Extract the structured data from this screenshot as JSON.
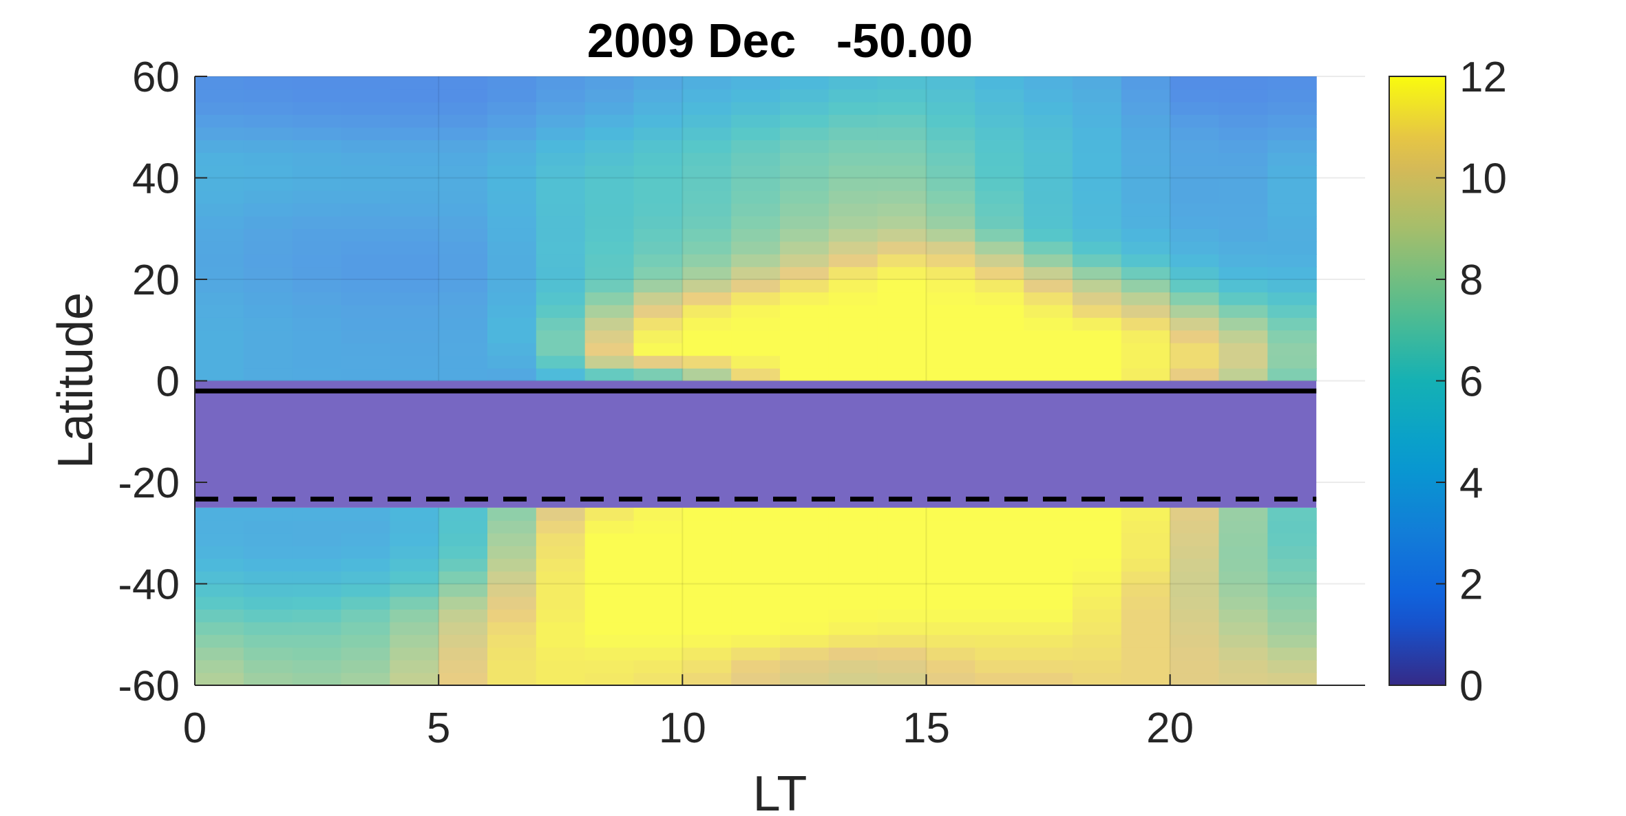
{
  "chart_data": {
    "type": "heatmap",
    "title": "2009 Dec   -50.00",
    "xlabel": "LT",
    "ylabel": "Latitude",
    "xlim": [
      0,
      24
    ],
    "ylim": [
      -60,
      60
    ],
    "xticks": [
      0,
      5,
      10,
      15,
      20
    ],
    "yticks": [
      -60,
      -40,
      -20,
      0,
      20,
      40,
      60
    ],
    "x_cells": [
      0,
      1,
      2,
      3,
      4,
      5,
      6,
      7,
      8,
      9,
      10,
      11,
      12,
      13,
      14,
      15,
      16,
      17,
      18,
      19,
      20,
      21,
      22
    ],
    "lat_cell_height": 2.5,
    "grid": true,
    "colorbar": {
      "min": 0,
      "max": 12,
      "ticks": [
        0,
        2,
        4,
        6,
        8,
        10,
        12
      ],
      "colormap": "parula"
    },
    "masked_band": {
      "lat_min": -25,
      "lat_max": 0,
      "color": "#7767c2"
    },
    "reference_lines": [
      {
        "lat": -2,
        "style": "solid"
      },
      {
        "lat": -23.3,
        "style": "dashed"
      }
    ],
    "description_profiles": {
      "north": {
        "lat_range": [
          0,
          60
        ],
        "lt_anchors": [
          0,
          2,
          4,
          6,
          7,
          8,
          9,
          10,
          12,
          14,
          15,
          16,
          17,
          18,
          19,
          20,
          21,
          22,
          23
        ],
        "lat_anchors": [
          0,
          5,
          10,
          15,
          20,
          25,
          30,
          35,
          40,
          45,
          50,
          55,
          60
        ],
        "values_by_lt": [
          [
            4.0,
            4.0,
            4.0,
            3.8,
            3.5,
            3.5,
            3.6,
            4.0,
            4.2,
            4.0,
            3.0,
            2.2,
            2.0
          ],
          [
            3.6,
            3.6,
            3.6,
            3.4,
            3.0,
            2.9,
            3.1,
            3.6,
            4.0,
            3.8,
            2.8,
            2.0,
            1.8
          ],
          [
            3.5,
            3.4,
            3.2,
            3.0,
            2.6,
            2.6,
            3.0,
            3.5,
            3.8,
            3.5,
            2.6,
            1.9,
            1.8
          ],
          [
            3.5,
            3.5,
            3.5,
            3.3,
            3.0,
            3.0,
            3.3,
            3.6,
            3.8,
            3.5,
            2.6,
            1.9,
            1.8
          ],
          [
            3.0,
            4.5,
            5.5,
            4.8,
            4.5,
            4.6,
            4.7,
            4.9,
            4.9,
            4.5,
            3.4,
            2.6,
            2.3
          ],
          [
            5.0,
            9.5,
            8.5,
            7.0,
            5.6,
            5.8,
            5.6,
            5.6,
            5.6,
            5.0,
            4.0,
            3.0,
            2.6
          ],
          [
            5.0,
            12.0,
            11.0,
            9.0,
            7.0,
            6.5,
            6.2,
            6.0,
            6.0,
            5.5,
            4.6,
            3.6,
            3.0
          ],
          [
            6.0,
            12.0,
            12.0,
            11.0,
            8.0,
            7.0,
            6.5,
            6.2,
            6.2,
            6.0,
            5.0,
            4.2,
            3.6
          ],
          [
            12.0,
            12.0,
            12.0,
            12.0,
            10.5,
            8.5,
            7.8,
            7.3,
            7.0,
            6.8,
            6.2,
            5.0,
            4.2
          ],
          [
            12.0,
            12.0,
            12.0,
            12.0,
            12.0,
            10.5,
            8.8,
            8.3,
            7.8,
            7.3,
            6.8,
            6.0,
            5.0
          ],
          [
            12.0,
            12.0,
            12.0,
            12.0,
            12.0,
            11.0,
            8.8,
            8.0,
            7.4,
            7.0,
            6.5,
            5.8,
            5.2
          ],
          [
            12.0,
            12.0,
            12.0,
            12.0,
            11.5,
            9.8,
            7.5,
            7.0,
            6.5,
            6.2,
            5.8,
            5.3,
            4.8
          ],
          [
            12.0,
            12.0,
            12.0,
            12.0,
            11.0,
            8.0,
            6.0,
            5.8,
            5.6,
            5.5,
            5.2,
            4.5,
            4.0
          ],
          [
            12.0,
            12.0,
            12.0,
            11.0,
            9.0,
            6.5,
            5.0,
            5.0,
            5.0,
            5.0,
            4.8,
            4.2,
            3.8
          ],
          [
            12.0,
            12.0,
            12.0,
            10.0,
            8.0,
            5.5,
            4.5,
            4.3,
            4.1,
            4.0,
            3.8,
            3.6,
            3.4
          ],
          [
            11.0,
            11.5,
            11.0,
            9.0,
            6.5,
            4.5,
            3.8,
            3.5,
            3.5,
            3.4,
            3.2,
            2.2,
            1.8
          ],
          [
            9.5,
            11.0,
            9.5,
            7.0,
            5.0,
            4.0,
            3.5,
            3.2,
            3.2,
            3.0,
            2.6,
            1.8,
            1.6
          ],
          [
            8.0,
            9.0,
            8.0,
            6.5,
            4.5,
            3.8,
            3.5,
            3.6,
            3.6,
            3.3,
            2.6,
            2.0,
            1.8
          ],
          [
            6.0,
            6.8,
            6.5,
            5.6,
            4.5,
            4.0,
            4.2,
            4.5,
            4.5,
            4.0,
            3.0,
            2.2,
            1.9
          ]
        ]
      },
      "south": {
        "lat_range": [
          -60,
          -25
        ],
        "lt_anchors": [
          0,
          2,
          4,
          5,
          6,
          7,
          8,
          10,
          12,
          14,
          16,
          18,
          19,
          20,
          21,
          22,
          23
        ],
        "lat_anchors": [
          -25,
          -30,
          -35,
          -40,
          -45,
          -50,
          -55,
          -60
        ],
        "values_by_lt": [
          [
            4.0,
            4.0,
            4.5,
            5.5,
            6.5,
            7.5,
            8.5,
            9.0
          ],
          [
            4.0,
            3.8,
            4.0,
            5.0,
            6.0,
            7.0,
            7.5,
            8.0
          ],
          [
            4.0,
            3.8,
            4.5,
            5.5,
            7.0,
            7.5,
            8.0,
            8.5
          ],
          [
            5.0,
            5.0,
            5.5,
            6.5,
            8.0,
            9.0,
            9.5,
            10.0
          ],
          [
            6.0,
            6.5,
            7.0,
            8.5,
            10.0,
            10.5,
            11.0,
            11.0
          ],
          [
            9.0,
            10.0,
            10.5,
            11.0,
            11.0,
            11.5,
            11.5,
            11.5
          ],
          [
            11.0,
            12.0,
            12.0,
            12.0,
            12.0,
            12.0,
            11.5,
            11.5
          ],
          [
            12.0,
            12.0,
            12.0,
            12.0,
            12.0,
            12.0,
            11.5,
            11.0
          ],
          [
            12.0,
            12.0,
            12.0,
            12.0,
            12.0,
            12.0,
            10.5,
            10.0
          ],
          [
            12.0,
            12.0,
            12.0,
            12.0,
            12.0,
            11.5,
            10.0,
            9.5
          ],
          [
            12.0,
            12.0,
            12.0,
            12.0,
            12.0,
            11.5,
            11.0,
            10.5
          ],
          [
            12.0,
            12.0,
            12.0,
            12.0,
            12.0,
            11.5,
            11.0,
            10.5
          ],
          [
            12.0,
            12.0,
            12.0,
            11.5,
            11.0,
            11.0,
            11.0,
            11.0
          ],
          [
            11.5,
            11.0,
            11.0,
            10.5,
            10.5,
            10.5,
            10.5,
            10.5
          ],
          [
            9.0,
            9.0,
            8.5,
            8.5,
            9.0,
            9.5,
            10.0,
            10.0
          ],
          [
            7.0,
            6.8,
            7.0,
            7.5,
            8.0,
            8.5,
            9.5,
            10.0
          ],
          [
            6.0,
            6.0,
            6.5,
            7.0,
            7.5,
            8.0,
            9.0,
            10.0
          ]
        ]
      }
    }
  }
}
